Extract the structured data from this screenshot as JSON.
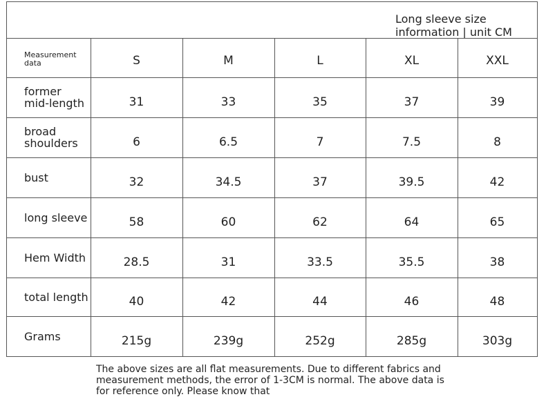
{
  "header": {
    "title": "Long sleeve size information | unit CM"
  },
  "table": {
    "columns": [
      "Measurement data",
      "S",
      "M",
      "L",
      "XL",
      "XXL"
    ],
    "rows": [
      [
        "former mid-length",
        "31",
        "33",
        "35",
        "37",
        "39"
      ],
      [
        "broad shoulders",
        "6",
        "6.5",
        "7",
        "7.5",
        "8"
      ],
      [
        "bust",
        "32",
        "34.5",
        "37",
        "39.5",
        "42"
      ],
      [
        "long sleeve",
        "58",
        "60",
        "62",
        "64",
        "65"
      ],
      [
        "Hem Width",
        "28.5",
        "31",
        "33.5",
        "35.5",
        "38"
      ],
      [
        "total length",
        "40",
        "42",
        "44",
        "46",
        "48"
      ],
      [
        "Grams",
        "215g",
        "239g",
        "252g",
        "285g",
        "303g"
      ]
    ]
  },
  "footnote": "The above sizes are all flat measurements. Due to different fabrics and measurement methods, the error of 1-3CM is normal. The above data is for reference only. Please know that"
}
